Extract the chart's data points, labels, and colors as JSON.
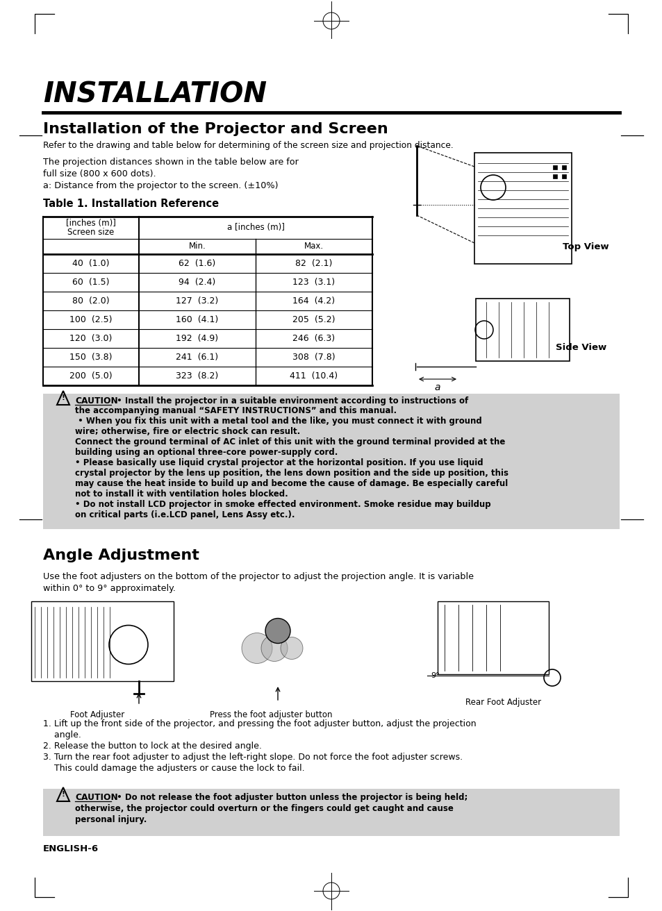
{
  "page_bg": "#ffffff",
  "title_main": "INSTALLATION",
  "section1_title": "Installation of the Projector and Screen",
  "section1_subtitle": "Refer to the drawing and table below for determining of the screen size and projection distance.",
  "proj_desc_line1": "The projection distances shown in the table below are for",
  "proj_desc_line2": "full size (800 x 600 dots).",
  "proj_desc_line3": "a: Distance from the projector to the screen. (±10%)",
  "table_title": "Table 1. Installation Reference",
  "table_data": [
    [
      "40  (1.0)",
      "62  (1.6)",
      "82  (2.1)"
    ],
    [
      "60  (1.5)",
      "94  (2.4)",
      "123  (3.1)"
    ],
    [
      "80  (2.0)",
      "127  (3.2)",
      "164  (4.2)"
    ],
    [
      "100  (2.5)",
      "160  (4.1)",
      "205  (5.2)"
    ],
    [
      "120  (3.0)",
      "192  (4.9)",
      "246  (6.3)"
    ],
    [
      "150  (3.8)",
      "241  (6.1)",
      "308  (7.8)"
    ],
    [
      "200  (5.0)",
      "323  (8.2)",
      "411  (10.4)"
    ]
  ],
  "top_view_label": "Top View",
  "side_view_label": "Side View",
  "caution_title": "CAUTION",
  "caution_text1": " • Install the projector in a suitable environment according to instructions of",
  "caution_text2": "the accompanying manual “SAFETY INSTRUCTIONS” and this manual.",
  "caution_text3": " • When you fix this unit with a metal tool and the like, you must connect it with ground",
  "caution_text4": "wire; otherwise, fire or electric shock can result.",
  "caution_text5": "Connect the ground terminal of AC inlet of this unit with the ground terminal provided at the",
  "caution_text6": "building using an optional three-core power-supply cord.",
  "caution_text7": "• Please basically use liquid crystal projector at the horizontal position. If you use liquid",
  "caution_text8": "crystal projector by the lens up position, the lens down position and the side up position, this",
  "caution_text9": "may cause the heat inside to build up and become the cause of damage. Be especially careful",
  "caution_text10": "not to install it with ventilation holes blocked.",
  "caution_text11": "• Do not install LCD projector in smoke effected environment. Smoke residue may buildup",
  "caution_text12": "on critical parts (i.e.LCD panel, Lens Assy etc.).",
  "section2_title": "Angle Adjustment",
  "angle_desc1": "Use the foot adjusters on the bottom of the projector to adjust the projection angle. It is variable",
  "angle_desc2": "within 0° to 9° approximately.",
  "foot_label": "Foot Adjuster",
  "press_label": "Press the foot adjuster button",
  "rear_label": "Rear Foot Adjuster",
  "steps": [
    "1. Lift up the front side of the projector, and pressing the foot adjuster button, adjust the projection",
    "    angle.",
    "2. Release the button to lock at the desired angle.",
    "3. Turn the rear foot adjuster to adjust the left-right slope. Do not force the foot adjuster screws.",
    "    This could damage the adjusters or cause the lock to fail."
  ],
  "caution2_text1": " • Do not release the foot adjuster button unless the projector is being held;",
  "caution2_text2": "otherwise, the projector could overturn or the fingers could get caught and cause",
  "caution2_text3": "personal injury.",
  "footer": "ENGLISH-6",
  "gray_bg": "#d0d0d0",
  "text_color": "#000000"
}
